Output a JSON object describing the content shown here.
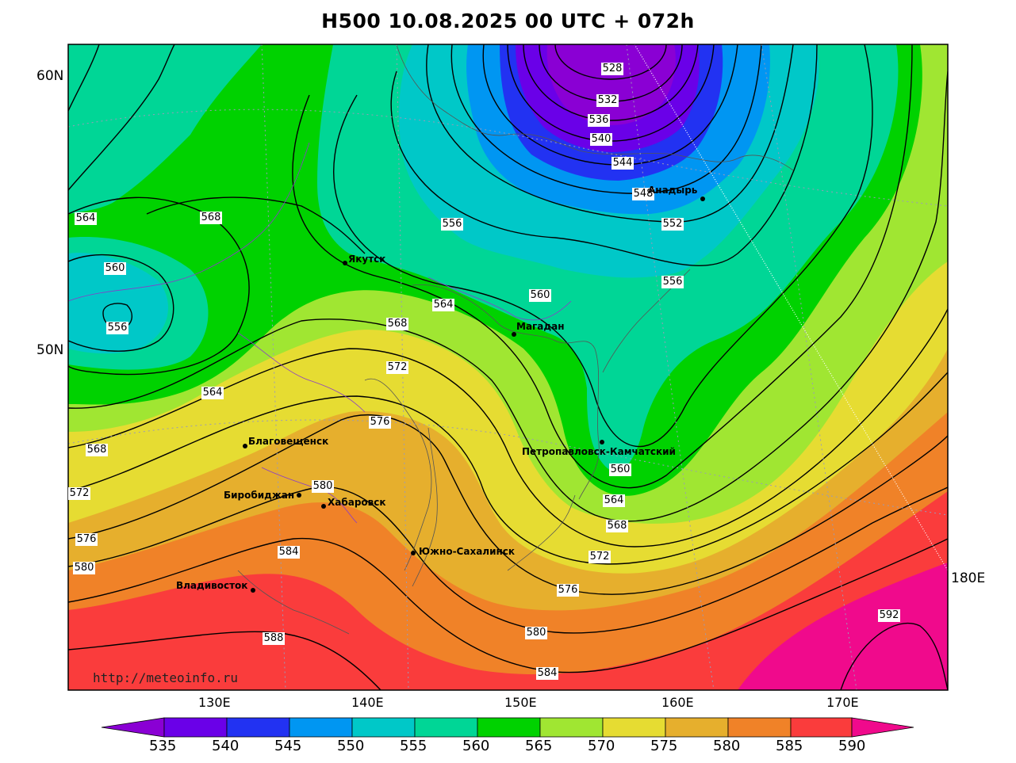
{
  "title": "H500  10.08.2025 00 UTC + 072h",
  "watermark": "http://meteoinfo.ru",
  "lat_labels": [
    "60N",
    "50N"
  ],
  "lon_labels": [
    "130E",
    "140E",
    "150E",
    "160E",
    "170E",
    "180E"
  ],
  "colorbar": {
    "ticks": [
      "535",
      "540",
      "545",
      "550",
      "555",
      "560",
      "565",
      "570",
      "575",
      "580",
      "585",
      "590"
    ],
    "colors": [
      "#8a00d4",
      "#6a00e8",
      "#2232f2",
      "#0096f2",
      "#00c8c8",
      "#00d696",
      "#00d200",
      "#a0e632",
      "#e6dc32",
      "#e6af2d",
      "#f08228",
      "#fa3c3c",
      "#f00a8c"
    ]
  },
  "cities": [
    "Якутск",
    "Магадан",
    "Анадырь",
    "Благовещенск",
    "Петропавловск-Камчатский",
    "Биробиджан",
    "Хабаровск",
    "Южно-Сахалинск",
    "Владивосток"
  ],
  "contour_labels": [
    "528",
    "532",
    "536",
    "540",
    "544",
    "548",
    "552",
    "556",
    "556",
    "556",
    "560",
    "560",
    "560",
    "564",
    "564",
    "564",
    "564",
    "568",
    "568",
    "568",
    "568",
    "572",
    "572",
    "572",
    "576",
    "576",
    "576",
    "580",
    "580",
    "580",
    "584",
    "584",
    "588",
    "592"
  ]
}
